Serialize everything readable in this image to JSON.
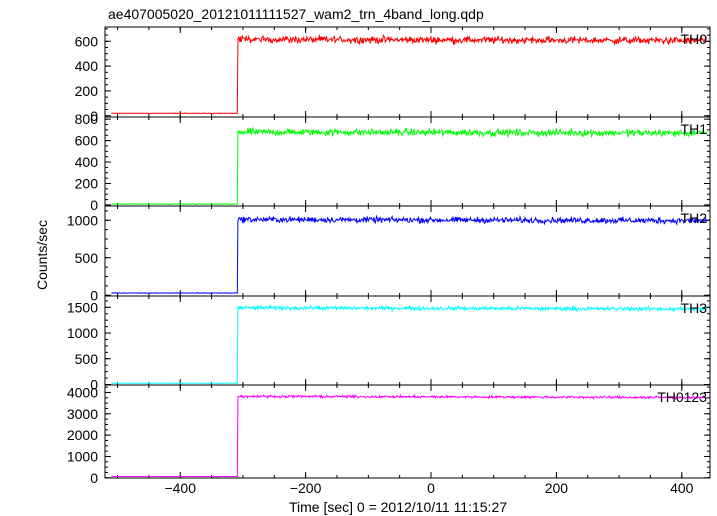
{
  "chart_data": {
    "type": "line",
    "title": "ae407005020_20121011111527_wam2_trn_4band_long.qdp",
    "xlabel": "Time [sec] 0 = 2012/10/11 11:15:27",
    "ylabel": "Counts/sec",
    "xlim": [
      -520,
      445
    ],
    "x_ticks": [
      -400,
      -200,
      0,
      200,
      400
    ],
    "x_tick_labels": [
      "−400",
      "−200",
      "0",
      "200",
      "400"
    ],
    "step_time": -308,
    "panels": [
      {
        "name": "TH0",
        "color": "#ff0000",
        "ylim": [
          -10,
          715
        ],
        "y_ticks": [
          0,
          200,
          400,
          600
        ],
        "pre_level": 20,
        "post_level": 615,
        "noise": 28
      },
      {
        "name": "TH1",
        "color": "#00ff00",
        "ylim": [
          -10,
          820
        ],
        "y_ticks": [
          0,
          200,
          400,
          600,
          800
        ],
        "pre_level": 8,
        "post_level": 680,
        "noise": 32
      },
      {
        "name": "TH2",
        "color": "#0000ff",
        "ylim": [
          -10,
          1190
        ],
        "y_ticks": [
          0,
          500,
          1000
        ],
        "pre_level": 30,
        "post_level": 1010,
        "noise": 38
      },
      {
        "name": "TH3",
        "color": "#00ffff",
        "ylim": [
          -10,
          1720
        ],
        "y_ticks": [
          0,
          500,
          1000,
          1500
        ],
        "pre_level": 25,
        "post_level": 1490,
        "noise": 38
      },
      {
        "name": "TH0123",
        "color": "#ff00ff",
        "ylim": [
          -10,
          4350
        ],
        "y_ticks": [
          0,
          1000,
          2000,
          3000,
          4000
        ],
        "pre_level": 60,
        "post_level": 3820,
        "noise": 55
      }
    ]
  }
}
